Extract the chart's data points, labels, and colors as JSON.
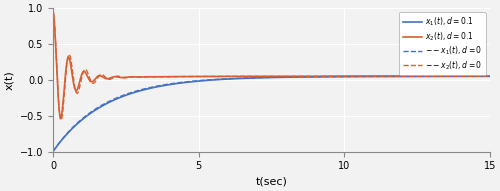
{
  "title": "",
  "xlabel": "t(sec)",
  "ylabel": "x(t)",
  "xlim": [
    0,
    15
  ],
  "ylim": [
    -1,
    1
  ],
  "yticks": [
    -1,
    -0.5,
    0,
    0.5,
    1
  ],
  "xticks": [
    0,
    5,
    10,
    15
  ],
  "blue_solid_color": "#4472c4",
  "orange_solid_color": "#d95f30",
  "blue_dash_color": "#4472c4",
  "orange_dash_color": "#d95f30",
  "background_color": "#f2f2f2",
  "grid_color": "#ffffff",
  "legend_labels": [
    "x_{1}(t),d=0.1",
    "x_{2}(t),d=0.1",
    "x_{1}(t),d=0",
    "x_{2}(t),d=0"
  ]
}
